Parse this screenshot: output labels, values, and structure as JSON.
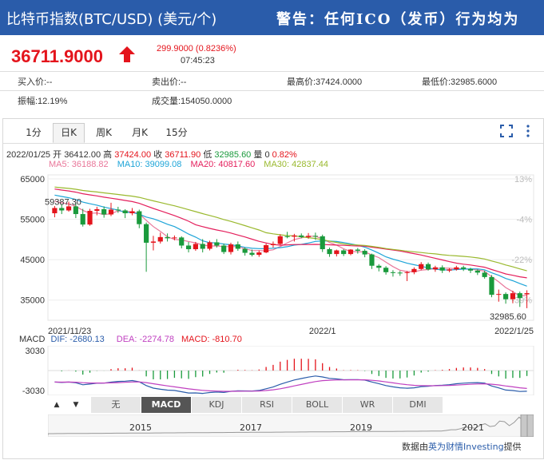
{
  "header": {
    "title": "比特币指数(BTC/USD) (美元/个)",
    "warning": "警告：任何ICO（发币）行为均为"
  },
  "quote": {
    "price": "36711.9000",
    "change": "299.9000 (0.8236%)",
    "time": "07:45:23"
  },
  "info": {
    "row1": [
      "买入价:--",
      "卖出价:--",
      "最高价:37424.0000",
      "最低价:32985.6000"
    ],
    "row2": [
      "振幅:12.19%",
      "成交量:154050.0000"
    ]
  },
  "tabs": [
    "1分",
    "日K",
    "周K",
    "月K",
    "15分"
  ],
  "active_tab": "日K",
  "ohlc": {
    "date": "2022/01/25",
    "open_label": "开",
    "open": "36412.00",
    "high_label": "高",
    "high": "37424.00",
    "close_label": "收",
    "close": "36711.90",
    "low_label": "低",
    "low": "32985.60",
    "vol_label": "量",
    "vol": "0",
    "pct": "0.82%"
  },
  "ma": {
    "ma5": "MA5: 36188.82",
    "ma10": "MA10: 39099.08",
    "ma20": "MA20: 40817.60",
    "ma30": "MA30: 42837.44"
  },
  "colors": {
    "up": "#e4141c",
    "down": "#1a9a3c",
    "ma5": "#e9779a",
    "ma10": "#1fa5d8",
    "ma20": "#e41f5c",
    "ma30": "#9ab92e",
    "brand": "#2a5caa"
  },
  "chart_data": {
    "type": "candlestick",
    "y_ticks": [
      "65000",
      "55000",
      "45000",
      "35000"
    ],
    "pct_ticks": [
      "13%",
      "-4%",
      "-22%",
      "-39%"
    ],
    "x_labels": [
      "2021/11/23",
      "2022/1",
      "2022/1/25"
    ],
    "max_label": "59387.30",
    "min_label": "32985.60",
    "ylim": [
      30000,
      66000
    ],
    "candles": [
      {
        "o": 56500,
        "c": 57800,
        "h": 58300,
        "l": 55500
      },
      {
        "o": 57800,
        "c": 57200,
        "h": 58800,
        "l": 56300
      },
      {
        "o": 57200,
        "c": 58200,
        "h": 59387,
        "l": 56900
      },
      {
        "o": 58200,
        "c": 56300,
        "h": 59000,
        "l": 55300
      },
      {
        "o": 56300,
        "c": 53700,
        "h": 57600,
        "l": 53200
      },
      {
        "o": 53700,
        "c": 57100,
        "h": 57600,
        "l": 53400
      },
      {
        "o": 57100,
        "c": 57500,
        "h": 58100,
        "l": 56000
      },
      {
        "o": 57500,
        "c": 56200,
        "h": 58200,
        "l": 55400
      },
      {
        "o": 56200,
        "c": 57400,
        "h": 59100,
        "l": 55800
      },
      {
        "o": 57400,
        "c": 57200,
        "h": 58100,
        "l": 56600
      },
      {
        "o": 57200,
        "c": 56500,
        "h": 57500,
        "l": 55300
      },
      {
        "o": 56500,
        "c": 57000,
        "h": 57800,
        "l": 56000
      },
      {
        "o": 57000,
        "c": 53800,
        "h": 57400,
        "l": 52800
      },
      {
        "o": 53800,
        "c": 49200,
        "h": 54200,
        "l": 42000
      },
      {
        "o": 49200,
        "c": 49500,
        "h": 50900,
        "l": 47300
      },
      {
        "o": 49500,
        "c": 50600,
        "h": 51700,
        "l": 49000
      },
      {
        "o": 50600,
        "c": 50300,
        "h": 51500,
        "l": 49500
      },
      {
        "o": 50300,
        "c": 50500,
        "h": 51000,
        "l": 49800
      },
      {
        "o": 50500,
        "c": 48500,
        "h": 50800,
        "l": 47800
      },
      {
        "o": 48500,
        "c": 47600,
        "h": 49400,
        "l": 46800
      },
      {
        "o": 47600,
        "c": 48900,
        "h": 49400,
        "l": 47200
      },
      {
        "o": 48900,
        "c": 47700,
        "h": 50100,
        "l": 46800
      },
      {
        "o": 47700,
        "c": 49300,
        "h": 49700,
        "l": 47300
      },
      {
        "o": 49300,
        "c": 48500,
        "h": 50100,
        "l": 48000
      },
      {
        "o": 48500,
        "c": 46900,
        "h": 49000,
        "l": 46400
      },
      {
        "o": 46900,
        "c": 48800,
        "h": 49200,
        "l": 46300
      },
      {
        "o": 48800,
        "c": 47700,
        "h": 49500,
        "l": 47200
      },
      {
        "o": 47700,
        "c": 46700,
        "h": 48000,
        "l": 46000
      },
      {
        "o": 46700,
        "c": 46200,
        "h": 47500,
        "l": 45800
      },
      {
        "o": 46200,
        "c": 46800,
        "h": 47300,
        "l": 45700
      },
      {
        "o": 46800,
        "c": 48600,
        "h": 49000,
        "l": 46600
      },
      {
        "o": 48600,
        "c": 48900,
        "h": 49500,
        "l": 48000
      },
      {
        "o": 48900,
        "c": 50800,
        "h": 51300,
        "l": 48500
      },
      {
        "o": 50800,
        "c": 50700,
        "h": 51900,
        "l": 50300
      },
      {
        "o": 50700,
        "c": 51000,
        "h": 51400,
        "l": 49500
      },
      {
        "o": 51000,
        "c": 50600,
        "h": 51500,
        "l": 50300
      },
      {
        "o": 50600,
        "c": 50900,
        "h": 51600,
        "l": 50200
      },
      {
        "o": 50900,
        "c": 50800,
        "h": 51700,
        "l": 49900
      },
      {
        "o": 50800,
        "c": 47600,
        "h": 51200,
        "l": 46900
      },
      {
        "o": 47600,
        "c": 46400,
        "h": 48000,
        "l": 45700
      },
      {
        "o": 46400,
        "c": 47300,
        "h": 47500,
        "l": 45800
      },
      {
        "o": 47300,
        "c": 46400,
        "h": 47600,
        "l": 45900
      },
      {
        "o": 46400,
        "c": 47500,
        "h": 47600,
        "l": 46100
      },
      {
        "o": 47500,
        "c": 47200,
        "h": 47900,
        "l": 46500
      },
      {
        "o": 47200,
        "c": 46300,
        "h": 47600,
        "l": 45600
      },
      {
        "o": 46300,
        "c": 43500,
        "h": 46500,
        "l": 42700
      },
      {
        "o": 43500,
        "c": 43000,
        "h": 43900,
        "l": 42100
      },
      {
        "o": 43000,
        "c": 41900,
        "h": 43400,
        "l": 41300
      },
      {
        "o": 41900,
        "c": 41800,
        "h": 42400,
        "l": 40800
      },
      {
        "o": 41800,
        "c": 41700,
        "h": 42200,
        "l": 41000
      },
      {
        "o": 41700,
        "c": 41900,
        "h": 42200,
        "l": 39700
      },
      {
        "o": 41900,
        "c": 42700,
        "h": 43100,
        "l": 41400
      },
      {
        "o": 42700,
        "c": 43900,
        "h": 44400,
        "l": 42400
      },
      {
        "o": 43900,
        "c": 42600,
        "h": 44300,
        "l": 42300
      },
      {
        "o": 42600,
        "c": 43100,
        "h": 43500,
        "l": 42000
      },
      {
        "o": 43100,
        "c": 42300,
        "h": 43600,
        "l": 41700
      },
      {
        "o": 42300,
        "c": 42600,
        "h": 42900,
        "l": 41900
      },
      {
        "o": 42600,
        "c": 43100,
        "h": 43500,
        "l": 42300
      },
      {
        "o": 43100,
        "c": 42700,
        "h": 43500,
        "l": 42200
      },
      {
        "o": 42700,
        "c": 42300,
        "h": 43000,
        "l": 41700
      },
      {
        "o": 42300,
        "c": 41800,
        "h": 42600,
        "l": 41200
      },
      {
        "o": 41800,
        "c": 40700,
        "h": 42300,
        "l": 40300
      },
      {
        "o": 40700,
        "c": 36300,
        "h": 41200,
        "l": 35700
      },
      {
        "o": 36300,
        "c": 36500,
        "h": 37600,
        "l": 34600
      },
      {
        "o": 36500,
        "c": 35200,
        "h": 36900,
        "l": 34100
      },
      {
        "o": 35200,
        "c": 36700,
        "h": 37300,
        "l": 34200
      },
      {
        "o": 36700,
        "c": 35500,
        "h": 37100,
        "l": 33300
      },
      {
        "o": 36412,
        "c": 36711,
        "h": 37424,
        "l": 32985
      }
    ],
    "macd_label": "MACD",
    "macd_values": {
      "dif": "DIF: -2680.13",
      "dea": "DEA: -2274.78",
      "macd": "MACD: -810.70"
    },
    "macd_ticks": [
      "3030",
      "-3030"
    ],
    "indicator_tabs": [
      "无",
      "MACD",
      "KDJ",
      "RSI",
      "BOLL",
      "WR",
      "DMI"
    ],
    "active_indicator": "MACD",
    "range_years": [
      "2015",
      "2017",
      "2019",
      "2021"
    ]
  },
  "footer": {
    "prefix": "数据由",
    "brand": "英为财情Investing",
    "suffix": "提供"
  }
}
